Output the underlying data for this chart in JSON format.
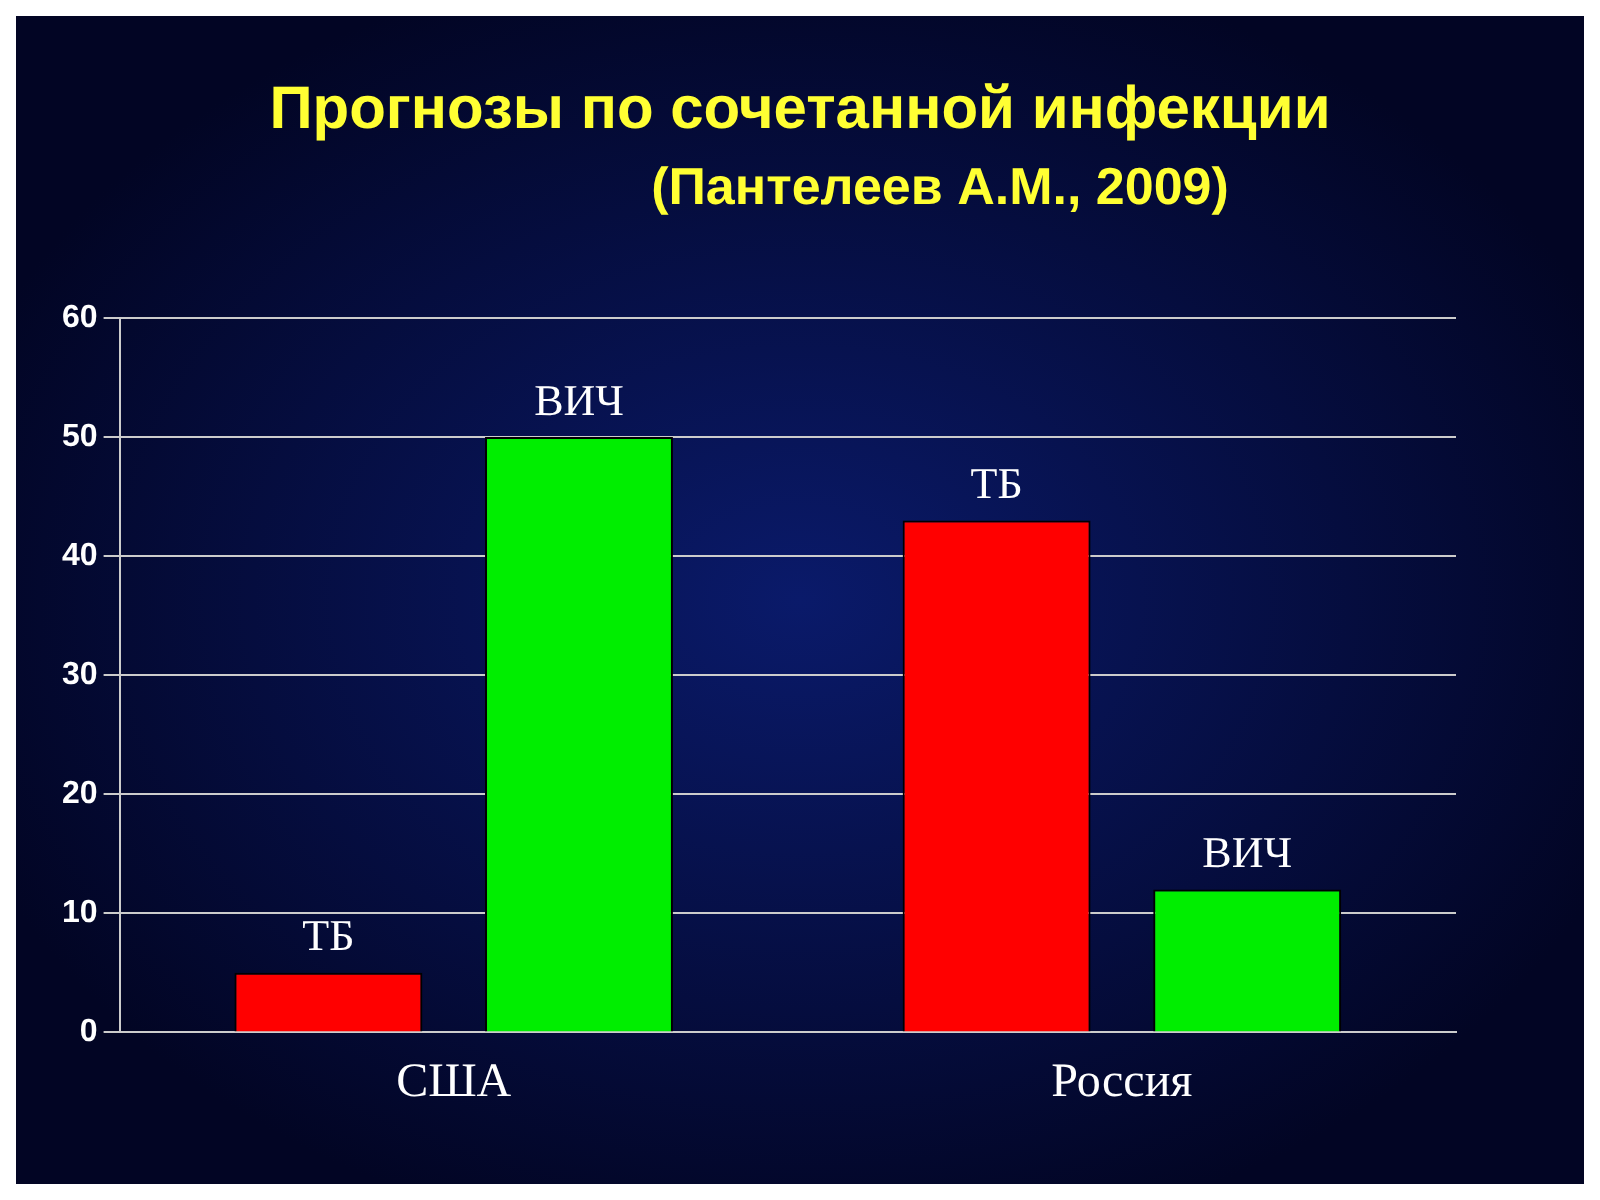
{
  "chart_data": {
    "type": "bar",
    "title": "Прогнозы по сочетанной инфекции",
    "subtitle": "(Пантелеев А.М., 2009)",
    "categories": [
      "США",
      "Россия"
    ],
    "series": [
      {
        "name": "ТБ",
        "color": "#ff0000",
        "values": [
          5,
          43
        ]
      },
      {
        "name": "ВИЧ",
        "color": "#00ee00",
        "values": [
          50,
          12
        ]
      }
    ],
    "ylim": [
      0,
      60
    ],
    "yticks": [
      0,
      10,
      20,
      30,
      40,
      50,
      60
    ],
    "grid": "y",
    "legend": false
  }
}
